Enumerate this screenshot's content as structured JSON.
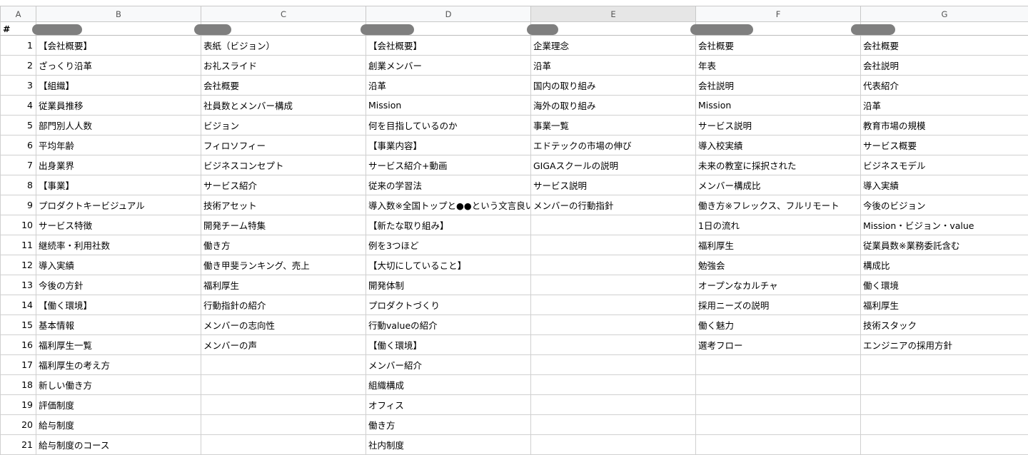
{
  "column_headers": [
    "A",
    "B",
    "C",
    "D",
    "E",
    "F",
    "G"
  ],
  "selected_column": "E",
  "hash_label": "#",
  "redacted_headers": [
    "[redacted]",
    "[redacted]",
    "[redacted]",
    "[redacted]",
    "[redacted]",
    "[redacted]"
  ],
  "rows": [
    [
      "1",
      "【会社概要】",
      "表紙（ビジョン）",
      "【会社概要】",
      "企業理念",
      "会社概要",
      "会社概要"
    ],
    [
      "2",
      "ざっくり沿革",
      "お礼スライド",
      "創業メンバー",
      "沿革",
      "年表",
      "会社説明"
    ],
    [
      "3",
      "【組織】",
      "会社概要",
      "沿革",
      "国内の取り組み",
      "会社説明",
      "代表紹介"
    ],
    [
      "4",
      "従業員推移",
      "社員数とメンバー構成",
      "Mission",
      "海外の取り組み",
      "Mission",
      "沿革"
    ],
    [
      "5",
      "部門別人人数",
      "ビジョン",
      "何を目指しているのか",
      "事業一覧",
      "サービス説明",
      "教育市場の規模"
    ],
    [
      "6",
      "平均年齢",
      "フィロソフィー",
      "【事業内容】",
      "エドテックの市場の伸び",
      "導入校実績",
      "サービス概要"
    ],
    [
      "7",
      "出身業界",
      "ビジネスコンセプト",
      "サービス紹介+動画",
      "GIGAスクールの説明",
      "未来の教室に採択された",
      "ビジネスモデル"
    ],
    [
      "8",
      "【事業】",
      "サービス紹介",
      "従来の学習法",
      "サービス説明",
      "メンバー構成比",
      "導入実績"
    ],
    [
      "9",
      "プロダクトキービジュアル",
      "技術アセット",
      "導入数※全国トップと●●という文言良い",
      "メンバーの行動指針",
      "働き方※フレックス、フルリモート",
      "今後のビジョン"
    ],
    [
      "10",
      "サービス特徴",
      "開発チーム特集",
      "【新たな取り組み】",
      "",
      "1日の流れ",
      "Mission・ビジョン・value"
    ],
    [
      "11",
      "継続率・利用社数",
      "働き方",
      "例を3つほど",
      "",
      "福利厚生",
      "従業員数※業務委託含む"
    ],
    [
      "12",
      "導入実績",
      "働き甲斐ランキング、売上",
      "【大切にしていること】",
      "",
      "勉強会",
      "構成比"
    ],
    [
      "13",
      "今後の方針",
      "福利厚生",
      "開発体制",
      "",
      "オープンなカルチャ",
      "働く環境"
    ],
    [
      "14",
      "【働く環境】",
      "行動指針の紹介",
      "プロダクトづくり",
      "",
      "採用ニーズの説明",
      "福利厚生"
    ],
    [
      "15",
      "基本情報",
      "メンバーの志向性",
      "行動valueの紹介",
      "",
      "働く魅力",
      "技術スタック"
    ],
    [
      "16",
      "福利厚生一覧",
      "メンバーの声",
      "【働く環境】",
      "",
      "選考フロー",
      "エンジニアの採用方針"
    ],
    [
      "17",
      "福利厚生の考え方",
      "",
      "メンバー紹介",
      "",
      "",
      ""
    ],
    [
      "18",
      "新しい働き方",
      "",
      "組織構成",
      "",
      "",
      ""
    ],
    [
      "19",
      "評価制度",
      "",
      "オフィス",
      "",
      "",
      ""
    ],
    [
      "20",
      "給与制度",
      "",
      "働き方",
      "",
      "",
      ""
    ],
    [
      "21",
      "給与制度のコース",
      "",
      "社内制度",
      "",
      "",
      ""
    ]
  ]
}
